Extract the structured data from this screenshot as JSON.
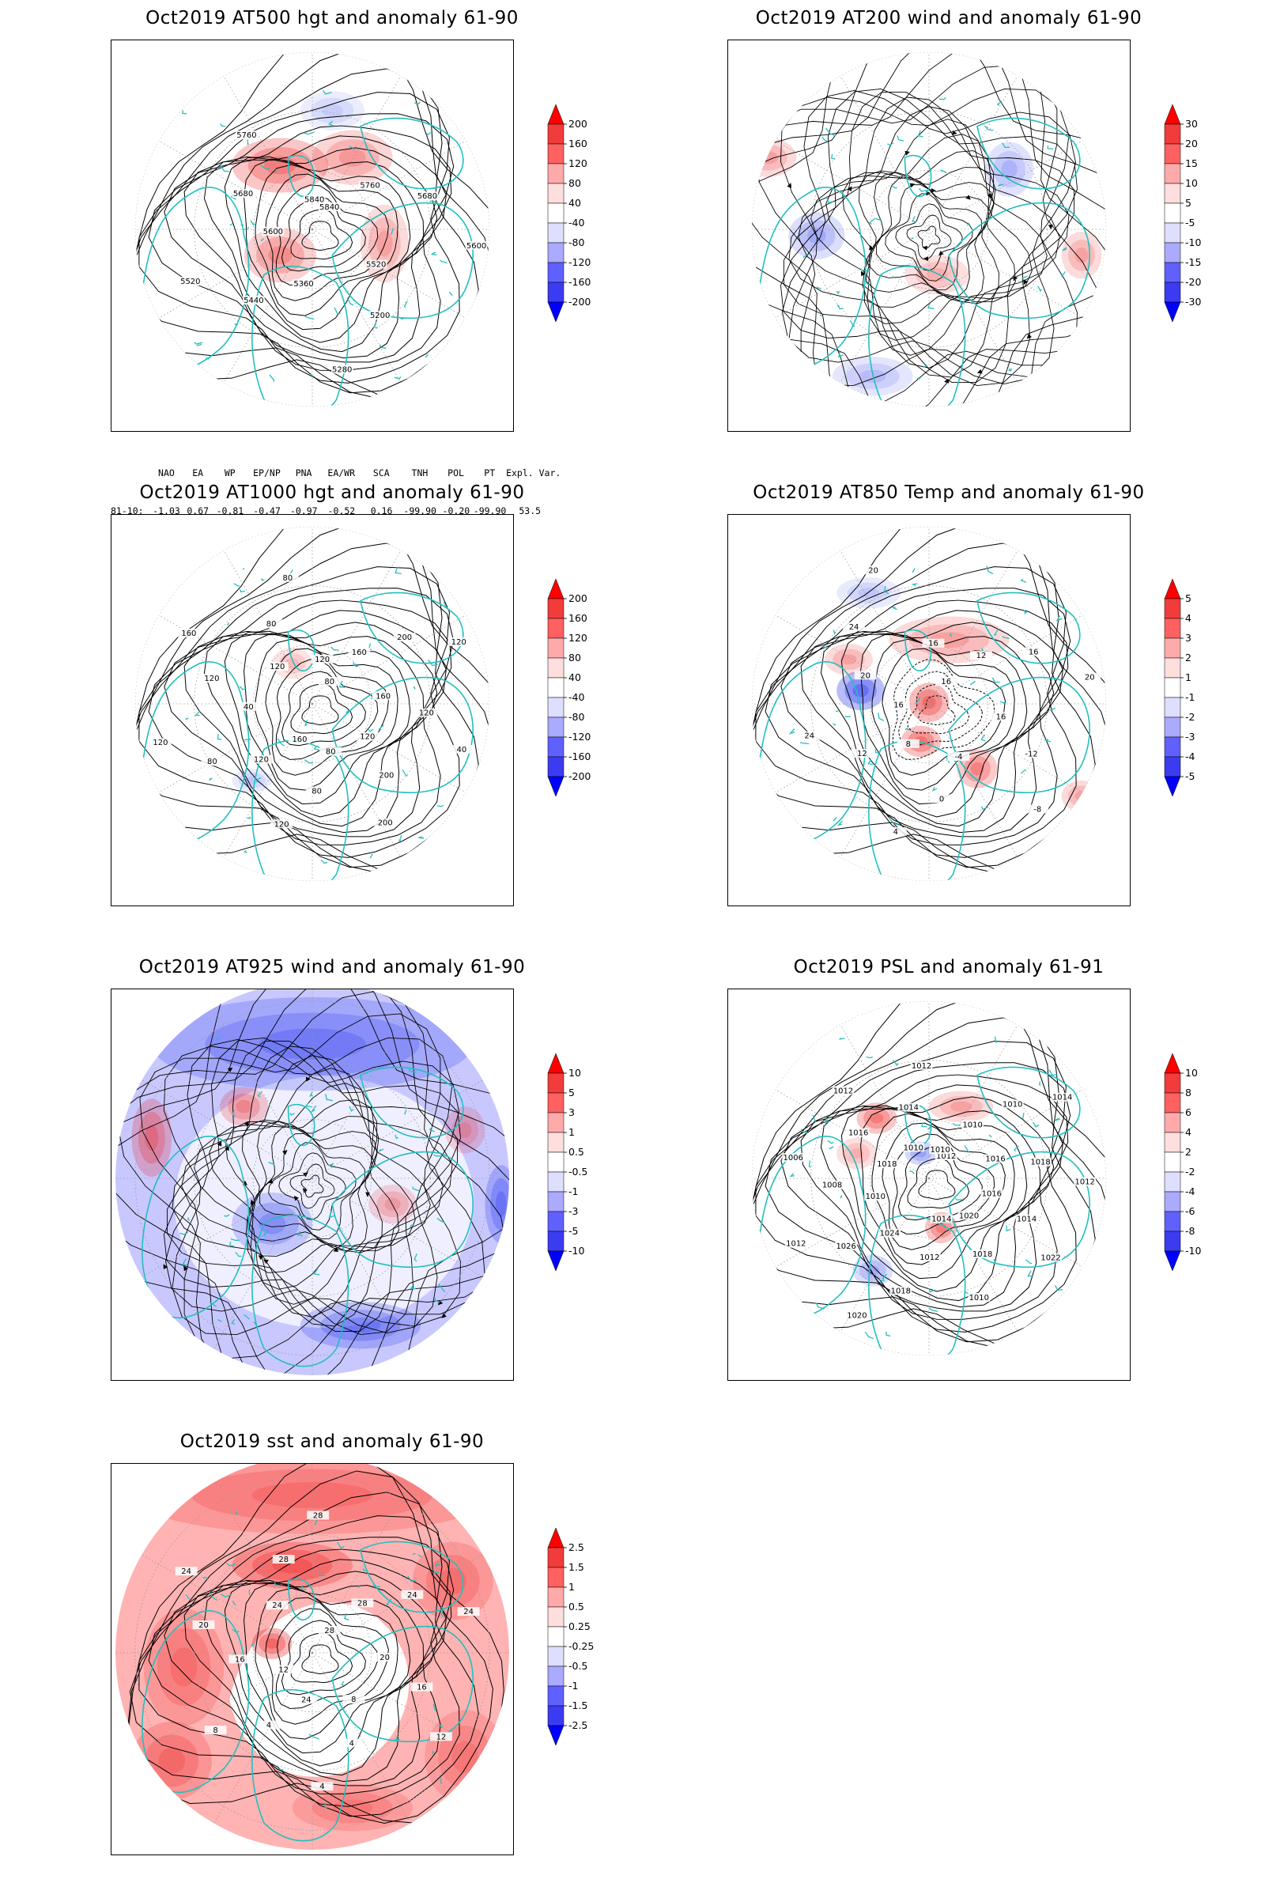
{
  "panels": [
    {
      "id": "z500",
      "title": "Oct2019 AT500 hgt and anomaly 61-90",
      "colorbar": [
        "200",
        "160",
        "120",
        "80",
        "40",
        "-40",
        "-80",
        "-120",
        "-160",
        "-200"
      ],
      "contour_labels": [
        "5840",
        "5760",
        "5680",
        "5600",
        "5520",
        "5200",
        "5280",
        "5360",
        "5440",
        "5520",
        "5600",
        "5680",
        "5760",
        "5840"
      ],
      "blobs": [
        [
          "r",
          0.42,
          0.32,
          0.12,
          0.07,
          0.75
        ],
        [
          "r",
          0.6,
          0.3,
          0.1,
          0.07,
          0.55
        ],
        [
          "r",
          0.42,
          0.55,
          0.09,
          0.07,
          0.6
        ],
        [
          "r",
          0.68,
          0.52,
          0.06,
          0.1,
          0.45
        ],
        [
          "b",
          0.55,
          0.18,
          0.08,
          0.05,
          0.25
        ]
      ]
    },
    {
      "id": "w200",
      "title": "Oct2019 AT200 wind and anomaly 61-90",
      "colorbar": [
        "30",
        "20",
        "15",
        "10",
        "5",
        "-5",
        "-10",
        "-15",
        "-20",
        "-30"
      ],
      "contour_labels": [],
      "blobs": [
        [
          "r",
          0.1,
          0.3,
          0.07,
          0.05,
          0.5
        ],
        [
          "b",
          0.22,
          0.5,
          0.07,
          0.06,
          0.45
        ],
        [
          "r",
          0.52,
          0.6,
          0.08,
          0.05,
          0.4
        ],
        [
          "b",
          0.7,
          0.33,
          0.06,
          0.07,
          0.4
        ],
        [
          "r",
          0.88,
          0.55,
          0.05,
          0.06,
          0.45
        ],
        [
          "b",
          0.36,
          0.86,
          0.1,
          0.05,
          0.35
        ]
      ]
    },
    {
      "id": "z1000",
      "title": "Oct2019 AT1000 hgt and anomaly 61-90",
      "colorbar": [
        "200",
        "160",
        "120",
        "80",
        "40",
        "-40",
        "-80",
        "-120",
        "-160",
        "-200"
      ],
      "contour_labels": [
        "80",
        "160",
        "200",
        "120",
        "160",
        "120",
        "40",
        "120",
        "200",
        "200",
        "80",
        "80",
        "120",
        "160",
        "120",
        "80",
        "120",
        "40",
        "120",
        "160",
        "120",
        "80",
        "80",
        "120"
      ],
      "blobs": [
        [
          "r",
          0.45,
          0.38,
          0.05,
          0.04,
          0.35
        ],
        [
          "b",
          0.35,
          0.68,
          0.05,
          0.03,
          0.3
        ]
      ]
    },
    {
      "id": "t850",
      "title": "Oct2019 AT850 Temp and anomaly 61-90",
      "colorbar": [
        "5",
        "4",
        "3",
        "2",
        "1",
        "-1",
        "-2",
        "-3",
        "-4",
        "-5"
      ],
      "contour_labels": [
        "16",
        "12",
        "16",
        "20",
        "16",
        "-12",
        "-8",
        "-4",
        "0",
        "4",
        "8",
        "12",
        "24",
        "16",
        "20",
        "24",
        "20",
        "16"
      ],
      "blobs": [
        [
          "b",
          0.33,
          0.45,
          0.06,
          0.05,
          0.9
        ],
        [
          "r",
          0.5,
          0.48,
          0.05,
          0.05,
          0.85
        ],
        [
          "r",
          0.48,
          0.58,
          0.05,
          0.04,
          0.8
        ],
        [
          "r",
          0.62,
          0.65,
          0.05,
          0.05,
          0.7
        ],
        [
          "r",
          0.55,
          0.32,
          0.15,
          0.06,
          0.5
        ],
        [
          "r",
          0.3,
          0.37,
          0.06,
          0.04,
          0.45
        ],
        [
          "r",
          0.88,
          0.72,
          0.05,
          0.04,
          0.5
        ],
        [
          "b",
          0.35,
          0.2,
          0.08,
          0.04,
          0.3
        ]
      ]
    },
    {
      "id": "w925",
      "title": "Oct2019 AT925 wind and anomaly 61-90",
      "colorbar": [
        "10",
        "5",
        "3",
        "1",
        "0.5",
        "-0.5",
        "-1",
        "-3",
        "-5",
        "-10"
      ],
      "contour_labels": [],
      "blobs": [
        [
          "b",
          0.5,
          0.14,
          0.4,
          0.12,
          0.6
        ],
        [
          "r",
          0.1,
          0.38,
          0.05,
          0.1,
          0.7
        ],
        [
          "r",
          0.33,
          0.3,
          0.06,
          0.05,
          0.6
        ],
        [
          "b",
          0.4,
          0.6,
          0.1,
          0.08,
          0.6
        ],
        [
          "r",
          0.7,
          0.55,
          0.06,
          0.05,
          0.45
        ],
        [
          "b",
          0.97,
          0.55,
          0.04,
          0.1,
          0.7
        ],
        [
          "b",
          0.62,
          0.86,
          0.15,
          0.06,
          0.65
        ],
        [
          "r",
          0.88,
          0.36,
          0.05,
          0.06,
          0.5
        ]
      ]
    },
    {
      "id": "psl",
      "title": "Oct2019 PSL and anomaly 61-91",
      "colorbar": [
        "10",
        "8",
        "6",
        "4",
        "2",
        "-2",
        "-4",
        "-6",
        "-8",
        "-10"
      ],
      "contour_labels": [
        "1012",
        "1010",
        "1010",
        "1014",
        "1016",
        "1018",
        "1012",
        "1016",
        "1014",
        "1022",
        "1020",
        "1018",
        "1010",
        "1014",
        "1012",
        "1018",
        "1020",
        "1024",
        "1026",
        "1012",
        "1010",
        "1008",
        "1006",
        "1018",
        "1016",
        "1012",
        "1010",
        "1014",
        "1012",
        "1010"
      ],
      "blobs": [
        [
          "r",
          0.37,
          0.33,
          0.05,
          0.04,
          0.75
        ],
        [
          "r",
          0.53,
          0.61,
          0.04,
          0.04,
          0.75
        ],
        [
          "b",
          0.48,
          0.42,
          0.04,
          0.03,
          0.55
        ],
        [
          "r",
          0.58,
          0.3,
          0.08,
          0.04,
          0.5
        ],
        [
          "r",
          0.32,
          0.42,
          0.05,
          0.04,
          0.4
        ],
        [
          "b",
          0.36,
          0.72,
          0.05,
          0.04,
          0.45
        ]
      ]
    },
    {
      "id": "sst",
      "title": "Oct2019 sst and anomaly 61-90",
      "colorbar": [
        "2.5",
        "1.5",
        "1",
        "0.5",
        "0.25",
        "-0.25",
        "-0.5",
        "-1",
        "-1.5",
        "-2.5"
      ],
      "contour_labels": [
        "28",
        "28",
        "24",
        "24",
        "20",
        "16",
        "12",
        "8",
        "4",
        "4",
        "24",
        "4",
        "8",
        "12",
        "16",
        "20",
        "24",
        "24",
        "28",
        "28"
      ],
      "blobs": [
        [
          "r",
          0.5,
          0.08,
          0.45,
          0.1,
          0.55
        ],
        [
          "r",
          0.45,
          0.26,
          0.15,
          0.06,
          0.8
        ],
        [
          "r",
          0.18,
          0.52,
          0.1,
          0.15,
          0.55
        ],
        [
          "r",
          0.15,
          0.76,
          0.1,
          0.1,
          0.6
        ],
        [
          "r",
          0.85,
          0.3,
          0.1,
          0.1,
          0.55
        ],
        [
          "r",
          0.88,
          0.75,
          0.1,
          0.12,
          0.45
        ],
        [
          "r",
          0.4,
          0.46,
          0.05,
          0.04,
          0.9
        ],
        [
          "r",
          0.6,
          0.88,
          0.15,
          0.06,
          0.45
        ]
      ]
    }
  ],
  "teleconnections": {
    "headers": [
      "NAO",
      "EA",
      "WP",
      "EP/NP",
      "PNA",
      "EA/WR",
      "SCA",
      "TNH",
      "POL",
      "PT",
      "Expl. Var."
    ],
    "row_label": "81-10:",
    "values": [
      "-1.03",
      "0.67",
      "-0.81",
      "-0.47",
      "-0.97",
      "-0.52",
      "0.16",
      "-99.90",
      "-0.20",
      "-99.90",
      "53.5"
    ]
  }
}
